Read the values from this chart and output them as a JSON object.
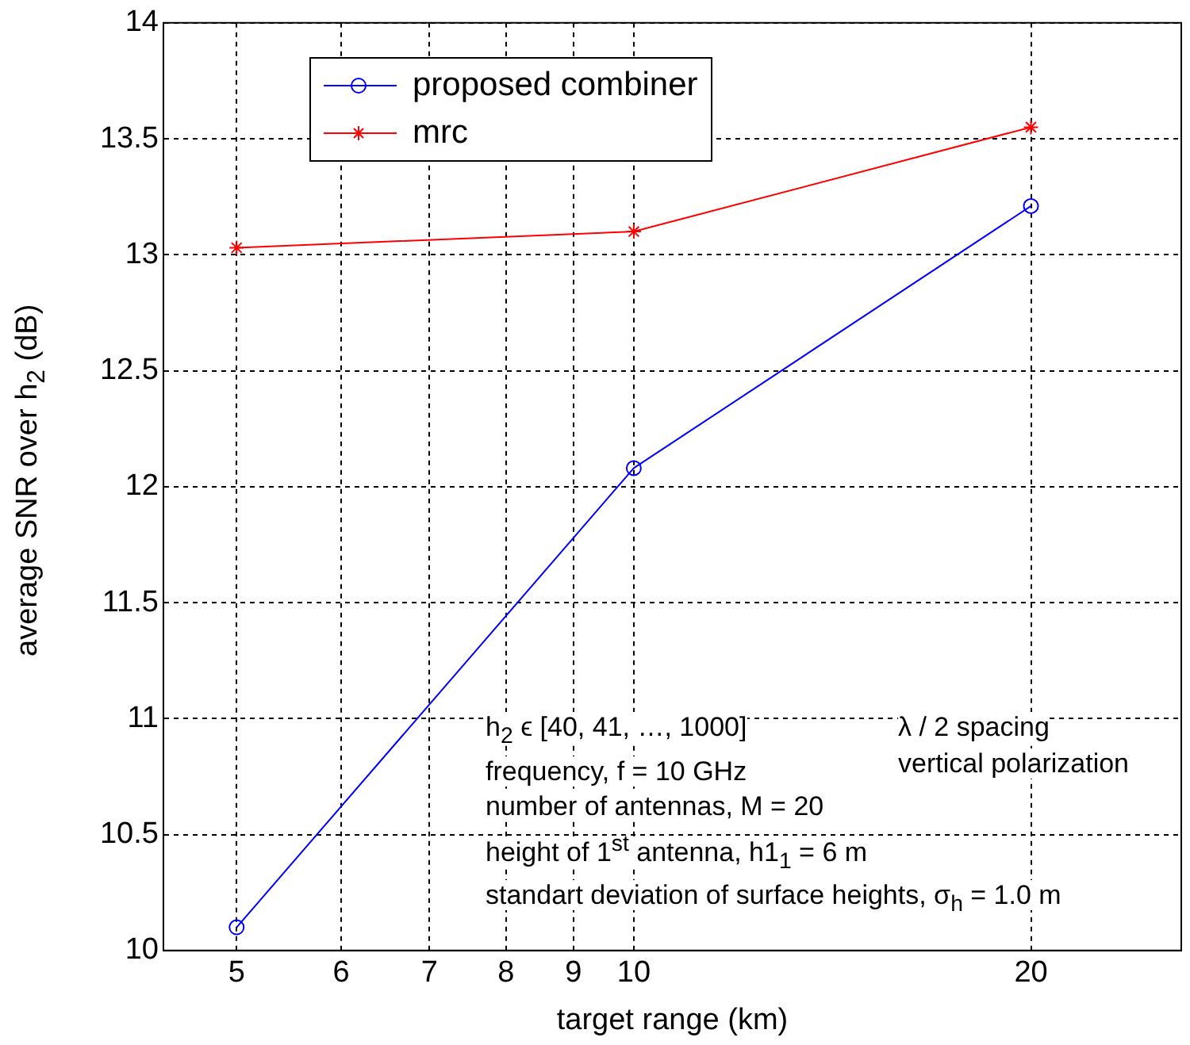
{
  "chart_data": {
    "type": "line",
    "xlabel": "target range (km)",
    "ylabel": "average SNR over h$_{2}$ (dB)",
    "x": [
      5,
      10,
      20
    ],
    "series": [
      {
        "name": "proposed combiner",
        "color": "#0000ff",
        "marker": "circle",
        "values": [
          10.1,
          12.08,
          13.21
        ]
      },
      {
        "name": "mrc",
        "color": "#ff0000",
        "marker": "cross",
        "values": [
          13.03,
          13.1,
          13.55
        ]
      }
    ],
    "log": "x",
    "xlim": [
      4.4,
      26
    ],
    "xticks": [
      5,
      6,
      7,
      8,
      9,
      10,
      20
    ],
    "ylim": [
      10,
      14
    ],
    "yticks": [
      10,
      10.5,
      11,
      11.5,
      12,
      12.5,
      13,
      13.5,
      14
    ],
    "grid": true,
    "legend": "top left",
    "line_style": "solid",
    "annotations": [
      "h$_{2}$ ϵ [40, 41, …, 1000]",
      "frequency, f = 10 GHz",
      "number of antennas, M = 20",
      "height of 1$^{st}$ antenna, h1$_{1}$ = 6 m",
      "standart deviation of surface heights, σ$_{h}$ = 1.0 m",
      "λ / 2 spacing",
      "vertical polarization"
    ]
  }
}
